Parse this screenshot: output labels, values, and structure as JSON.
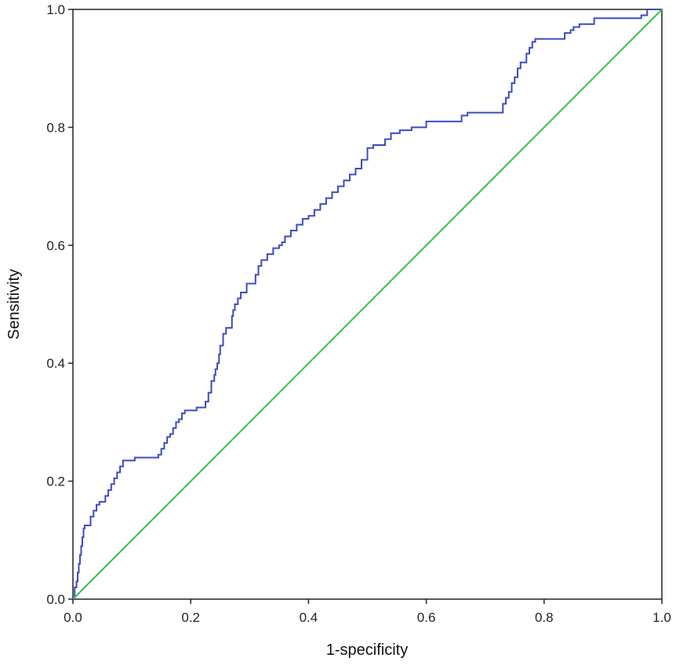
{
  "chart_data": {
    "type": "line",
    "xlabel": "1-specificity",
    "ylabel": "Sensitivity",
    "xlim": [
      0,
      1
    ],
    "ylim": [
      0,
      1
    ],
    "xticks": [
      "0.0",
      "0.2",
      "0.4",
      "0.6",
      "0.8",
      "1.0"
    ],
    "yticks": [
      "0.0",
      "0.2",
      "0.4",
      "0.6",
      "0.8",
      "1.0"
    ],
    "grid": false,
    "series": [
      {
        "color": "#3b4cc0",
        "step": true,
        "x": [
          0,
          0.003,
          0.006,
          0.008,
          0.01,
          0.012,
          0.014,
          0.016,
          0.018,
          0.02,
          0.03,
          0.035,
          0.04,
          0.045,
          0.055,
          0.06,
          0.065,
          0.07,
          0.075,
          0.08,
          0.085,
          0.105,
          0.145,
          0.15,
          0.155,
          0.16,
          0.165,
          0.17,
          0.175,
          0.18,
          0.185,
          0.19,
          0.21,
          0.225,
          0.23,
          0.235,
          0.24,
          0.242,
          0.245,
          0.248,
          0.25,
          0.255,
          0.26,
          0.27,
          0.272,
          0.275,
          0.28,
          0.285,
          0.295,
          0.31,
          0.315,
          0.32,
          0.33,
          0.34,
          0.35,
          0.355,
          0.36,
          0.37,
          0.38,
          0.39,
          0.4,
          0.41,
          0.42,
          0.43,
          0.44,
          0.45,
          0.46,
          0.47,
          0.48,
          0.49,
          0.5,
          0.51,
          0.53,
          0.54,
          0.555,
          0.575,
          0.6,
          0.66,
          0.67,
          0.73,
          0.735,
          0.74,
          0.745,
          0.75,
          0.755,
          0.76,
          0.77,
          0.775,
          0.78,
          0.785,
          0.835,
          0.845,
          0.85,
          0.86,
          0.885,
          0.965,
          0.975,
          0.99,
          1.0
        ],
        "y": [
          0,
          0.02,
          0.03,
          0.045,
          0.06,
          0.075,
          0.09,
          0.105,
          0.12,
          0.125,
          0.14,
          0.15,
          0.16,
          0.165,
          0.175,
          0.185,
          0.195,
          0.205,
          0.215,
          0.225,
          0.235,
          0.24,
          0.245,
          0.255,
          0.265,
          0.275,
          0.28,
          0.29,
          0.3,
          0.305,
          0.315,
          0.32,
          0.325,
          0.335,
          0.35,
          0.37,
          0.38,
          0.39,
          0.4,
          0.415,
          0.43,
          0.45,
          0.46,
          0.48,
          0.49,
          0.5,
          0.51,
          0.52,
          0.535,
          0.55,
          0.565,
          0.575,
          0.585,
          0.595,
          0.6,
          0.605,
          0.615,
          0.625,
          0.635,
          0.645,
          0.65,
          0.66,
          0.67,
          0.68,
          0.69,
          0.7,
          0.71,
          0.72,
          0.73,
          0.745,
          0.765,
          0.77,
          0.78,
          0.79,
          0.795,
          0.8,
          0.81,
          0.82,
          0.825,
          0.84,
          0.85,
          0.86,
          0.875,
          0.885,
          0.9,
          0.91,
          0.925,
          0.935,
          0.945,
          0.95,
          0.96,
          0.965,
          0.97,
          0.975,
          0.985,
          0.99,
          1.0,
          1.0,
          1.0
        ]
      },
      {
        "color": "#33c24d",
        "step": false,
        "x": [
          0,
          1
        ],
        "y": [
          0,
          1
        ]
      }
    ]
  }
}
